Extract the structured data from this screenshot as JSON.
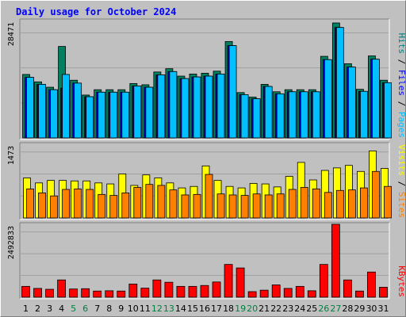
{
  "chart_data": {
    "type": "bar",
    "title": "Daily usage for October 2024",
    "categories": [
      "1",
      "2",
      "3",
      "4",
      "5",
      "6",
      "7",
      "8",
      "9",
      "10",
      "11",
      "12",
      "13",
      "14",
      "15",
      "16",
      "17",
      "18",
      "19",
      "20",
      "21",
      "22",
      "23",
      "24",
      "25",
      "26",
      "27",
      "28",
      "29",
      "30",
      "31"
    ],
    "weekend_days": [
      "5",
      "6",
      "12",
      "13",
      "19",
      "20",
      "26",
      "27"
    ],
    "panels": [
      {
        "ymax_label": "28471",
        "ymax": 28471,
        "side_label": [
          "Pages",
          "Files",
          "Hits"
        ],
        "side_colors": [
          "#00c0ff",
          "#0000ff",
          "#008080"
        ],
        "series": [
          {
            "name": "Hits",
            "color": "#008060",
            "values": [
              15400,
              13600,
              12300,
              22200,
              14000,
              10400,
              11700,
              11700,
              11700,
              13200,
              12900,
              16000,
              16800,
              15000,
              15500,
              15700,
              16200,
              23400,
              11000,
              9900,
              13000,
              11200,
              11700,
              11700,
              11700,
              19800,
              27900,
              18000,
              11800,
              19900,
              14000
            ]
          },
          {
            "name": "Files",
            "color": "#0000c0",
            "values": [
              14700,
              13000,
              11700,
              12100,
              13300,
              10000,
              11100,
              11100,
              11100,
              12600,
              12300,
              15300,
              16100,
              14400,
              14800,
              15000,
              15500,
              22400,
              10500,
              9500,
              12500,
              10700,
              11200,
              11200,
              11200,
              19000,
              26800,
              17200,
              11300,
              19100,
              13400
            ]
          },
          {
            "name": "Pages",
            "color": "#00c0ff",
            "values": [
              14700,
              13000,
              11700,
              15400,
              13300,
              10000,
              11100,
              11100,
              11100,
              12600,
              12300,
              15300,
              16100,
              14400,
              14800,
              15000,
              15500,
              22400,
              10500,
              9500,
              12500,
              10700,
              11200,
              11200,
              11200,
              19000,
              26800,
              17200,
              11300,
              19100,
              13400
            ]
          }
        ]
      },
      {
        "ymax_label": "1473",
        "ymax": 1473,
        "side_label": [
          "Sites",
          "Visits"
        ],
        "side_colors": [
          "#ff8000",
          "#ffff00"
        ],
        "series": [
          {
            "name": "Visits",
            "color": "#ffff00",
            "values": [
              800,
              700,
              750,
              750,
              740,
              740,
              700,
              680,
              880,
              650,
              860,
              800,
              700,
              600,
              630,
              1040,
              750,
              630,
              600,
              690,
              680,
              620,
              830,
              1110,
              760,
              950,
              1000,
              1050,
              930,
              1340,
              990
            ]
          },
          {
            "name": "Sites",
            "color": "#ff8000",
            "values": [
              580,
              500,
              440,
              570,
              580,
              570,
              470,
              450,
              500,
              610,
              670,
              650,
              560,
              460,
              470,
              870,
              480,
              460,
              450,
              480,
              460,
              480,
              570,
              610,
              580,
              510,
              550,
              560,
              600,
              930,
              630
            ]
          }
        ]
      },
      {
        "ymax_label": "2492833",
        "ymax": 2492833,
        "side_label": [
          "KBytes"
        ],
        "side_colors": [
          "#ff0000"
        ],
        "series": [
          {
            "name": "KBytes",
            "color": "#ff0000",
            "values": [
              370000,
              300000,
              270000,
              590000,
              280000,
              290000,
              210000,
              220000,
              210000,
              450000,
              310000,
              590000,
              510000,
              370000,
              370000,
              400000,
              520000,
              1120000,
              1000000,
              190000,
              240000,
              420000,
              300000,
              370000,
              220000,
              1120000,
              2492833,
              590000,
              210000,
              860000,
              340000
            ]
          }
        ]
      }
    ],
    "grid": true,
    "legend": "right-vertical"
  }
}
